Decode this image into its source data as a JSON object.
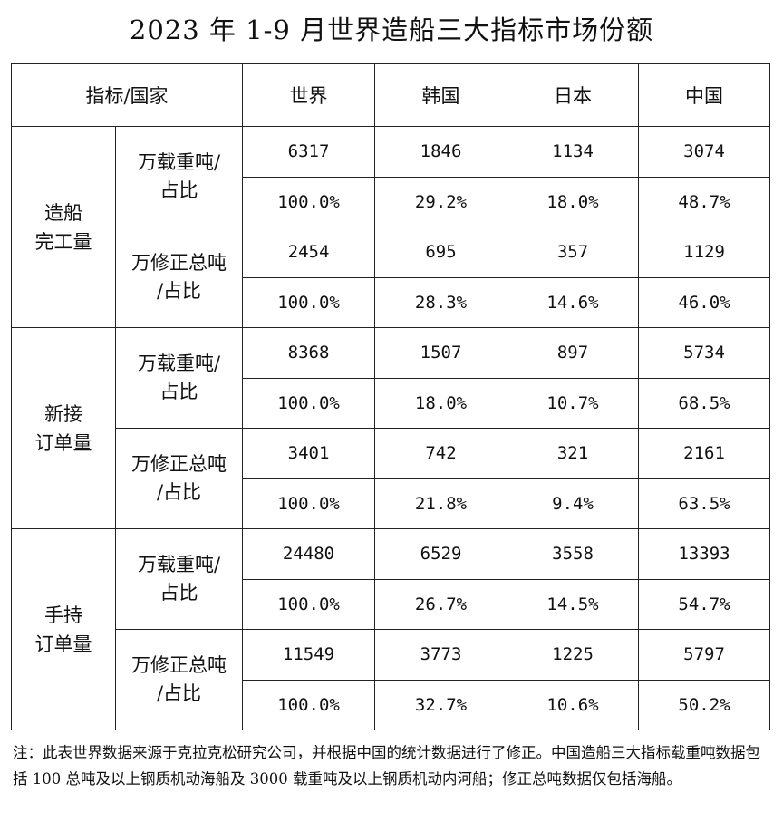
{
  "title": "2023 年 1-9 月世界造船三大指标市场份额",
  "headers": [
    "指标/国家",
    "世界",
    "韩国",
    "日本",
    "中国"
  ],
  "groups": [
    {
      "label_line1": "造船",
      "label_line2": "完工量",
      "metrics": [
        {
          "unit_line1": "万载重吨/",
          "unit_line2": "占比",
          "values": [
            "6317",
            "1846",
            "1134",
            "3074"
          ],
          "shares": [
            "100.0%",
            "29.2%",
            "18.0%",
            "48.7%"
          ]
        },
        {
          "unit_line1": "万修正总吨",
          "unit_line2": "/占比",
          "values": [
            "2454",
            "695",
            "357",
            "1129"
          ],
          "shares": [
            "100.0%",
            "28.3%",
            "14.6%",
            "46.0%"
          ]
        }
      ]
    },
    {
      "label_line1": "新接",
      "label_line2": "订单量",
      "metrics": [
        {
          "unit_line1": "万载重吨/",
          "unit_line2": "占比",
          "values": [
            "8368",
            "1507",
            "897",
            "5734"
          ],
          "shares": [
            "100.0%",
            "18.0%",
            "10.7%",
            "68.5%"
          ]
        },
        {
          "unit_line1": "万修正总吨",
          "unit_line2": "/占比",
          "values": [
            "3401",
            "742",
            "321",
            "2161"
          ],
          "shares": [
            "100.0%",
            "21.8%",
            "9.4%",
            "63.5%"
          ]
        }
      ]
    },
    {
      "label_line1": "手持",
      "label_line2": "订单量",
      "metrics": [
        {
          "unit_line1": "万载重吨/",
          "unit_line2": "占比",
          "values": [
            "24480",
            "6529",
            "3558",
            "13393"
          ],
          "shares": [
            "100.0%",
            "26.7%",
            "14.5%",
            "54.7%"
          ]
        },
        {
          "unit_line1": "万修正总吨",
          "unit_line2": "/占比",
          "values": [
            "11549",
            "3773",
            "1225",
            "5797"
          ],
          "shares": [
            "100.0%",
            "32.7%",
            "10.6%",
            "50.2%"
          ]
        }
      ]
    }
  ],
  "note": "注：此表世界数据来源于克拉克松研究公司，并根据中国的统计数据进行了修正。中国造船三大指标载重吨数据包括 100 总吨及以上钢质机动海船及 3000 载重吨及以上钢质机动内河船；修正总吨数据仅包括海船。"
}
